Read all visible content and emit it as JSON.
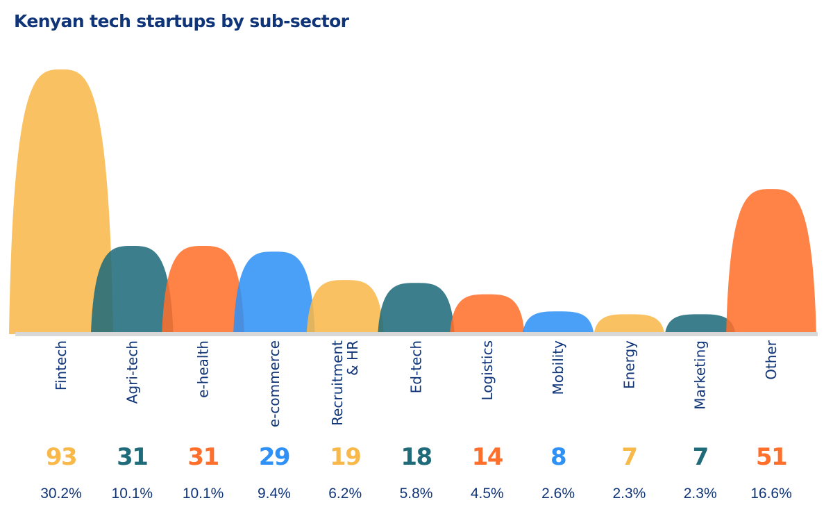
{
  "chart_data": {
    "type": "area",
    "title": "Kenyan tech startups by sub-sector",
    "categories": [
      "Fintech",
      "Agri-tech",
      "e-health",
      "e-commerce",
      "Recruitment & HR",
      "Ed-tech",
      "Logistics",
      "Mobility",
      "Energy",
      "Marketing",
      "Other"
    ],
    "label_lines": [
      [
        "Fintech"
      ],
      [
        "Agri-tech"
      ],
      [
        "e-health"
      ],
      [
        "e-commerce"
      ],
      [
        "Recruitment",
        "& HR"
      ],
      [
        "Ed-tech"
      ],
      [
        "Logistics"
      ],
      [
        "Mobility"
      ],
      [
        "Energy"
      ],
      [
        "Marketing"
      ],
      [
        "Other"
      ]
    ],
    "values": [
      93,
      31,
      31,
      29,
      19,
      18,
      14,
      8,
      7,
      7,
      51
    ],
    "value_labels": [
      "93",
      "31",
      "31",
      "29",
      "19",
      "18",
      "14",
      "8",
      "7",
      "7",
      "51"
    ],
    "percent_labels": [
      "30.2%",
      "10.1%",
      "10.1%",
      "9.4%",
      "6.2%",
      "5.8%",
      "4.5%",
      "2.6%",
      "2.3%",
      "2.3%",
      "16.6%"
    ],
    "colors": [
      "#f8b84a",
      "#1f6b7a",
      "#ff6f2c",
      "#2f91f6",
      "#f8b84a",
      "#1f6b7a",
      "#ff6f2c",
      "#2f91f6",
      "#f8b84a",
      "#1f6b7a",
      "#ff6f2c"
    ],
    "baseline_color": "#d8d8d8",
    "text_color": "#0f3478",
    "xlabel": "",
    "ylabel": "",
    "ylim": [
      0,
      93
    ],
    "grid": false,
    "legend": "none"
  }
}
